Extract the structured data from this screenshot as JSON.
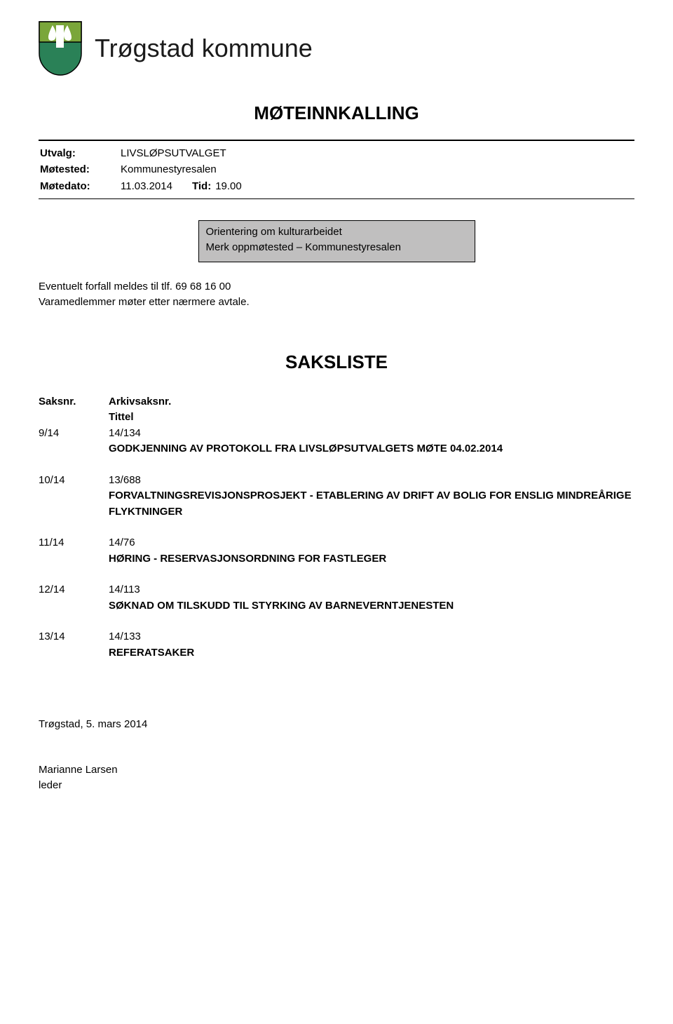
{
  "header": {
    "org_name": "Trøgstad kommune",
    "shield_colors": {
      "top": "#7aa63a",
      "bottom": "#2a8157",
      "border": "#000000"
    }
  },
  "meeting": {
    "title": "MØTEINNKALLING",
    "meta": {
      "utvalg_label": "Utvalg:",
      "utvalg_value": "LIVSLØPSUTVALGET",
      "motested_label": "Møtested:",
      "motested_value": "Kommunestyresalen",
      "motedato_label": "Møtedato:",
      "motedato_value": "11.03.2014",
      "tid_label": "Tid:",
      "tid_value": "19.00"
    }
  },
  "notice_box": {
    "line1": "Orientering om kulturarbeidet",
    "line2": "Merk oppmøtested – Kommunestyresalen"
  },
  "attendance": {
    "line1": "Eventuelt forfall meldes til tlf. 69 68 16 00",
    "line2": "Varamedlemmer møter etter nærmere avtale."
  },
  "saksliste": {
    "title": "SAKSLISTE",
    "col_saksnr": "Saksnr.",
    "col_arkiv": "Arkivsaksnr.",
    "col_tittel": "Tittel",
    "items": [
      {
        "saksnr": "9/14",
        "arkiv": "14/134",
        "title": "GODKJENNING AV PROTOKOLL FRA LIVSLØPSUTVALGETS MØTE 04.02.2014"
      },
      {
        "saksnr": "10/14",
        "arkiv": "13/688",
        "title": "FORVALTNINGSREVISJONSPROSJEKT - ETABLERING AV DRIFT AV BOLIG FOR ENSLIG MINDREÅRIGE FLYKTNINGER"
      },
      {
        "saksnr": "11/14",
        "arkiv": "14/76",
        "title": "HØRING - RESERVASJONSORDNING FOR FASTLEGER"
      },
      {
        "saksnr": "12/14",
        "arkiv": "14/113",
        "title": "SØKNAD OM TILSKUDD TIL STYRKING AV BARNEVERNTJENESTEN"
      },
      {
        "saksnr": "13/14",
        "arkiv": "14/133",
        "title": "REFERATSAKER"
      }
    ]
  },
  "signoff": {
    "place_date": "Trøgstad, 5. mars 2014",
    "name": "Marianne Larsen",
    "role": "leder"
  }
}
